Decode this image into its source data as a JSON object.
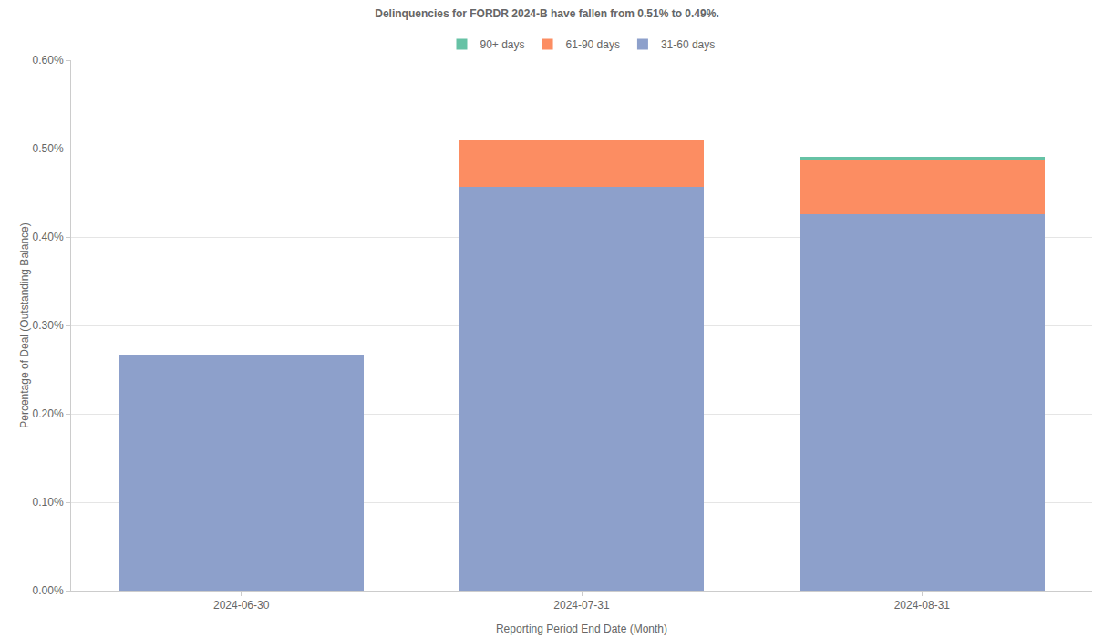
{
  "chart_data": {
    "type": "bar",
    "stacked": true,
    "title": "Delinquencies for FORDR 2024-B have fallen from 0.51% to 0.49%.",
    "x_label": "Reporting Period End Date (Month)",
    "y_label": "Percentage of Deal (Outstanding Balance)",
    "categories": [
      "2024-06-30",
      "2024-07-31",
      "2024-08-31"
    ],
    "series": [
      {
        "name": "31-60 days",
        "color": "#8da0cb",
        "values": [
          0.267,
          0.457,
          0.426
        ]
      },
      {
        "name": "61-90 days",
        "color": "#fc8d62",
        "values": [
          0,
          0.052,
          0.062
        ]
      },
      {
        "name": "90+ days",
        "color": "#66c2a5",
        "values": [
          0,
          0,
          0.003
        ]
      }
    ],
    "ylim": [
      0,
      0.6
    ],
    "yticks": [
      {
        "value": 0,
        "label": "0.00%"
      },
      {
        "value": 0.1,
        "label": "0.10%"
      },
      {
        "value": 0.2,
        "label": "0.20%"
      },
      {
        "value": 0.3,
        "label": "0.30%"
      },
      {
        "value": 0.4,
        "label": "0.40%"
      },
      {
        "value": 0.5,
        "label": "0.50%"
      },
      {
        "value": 0.6,
        "label": "0.60%"
      }
    ],
    "grid": true,
    "legend": "top"
  }
}
